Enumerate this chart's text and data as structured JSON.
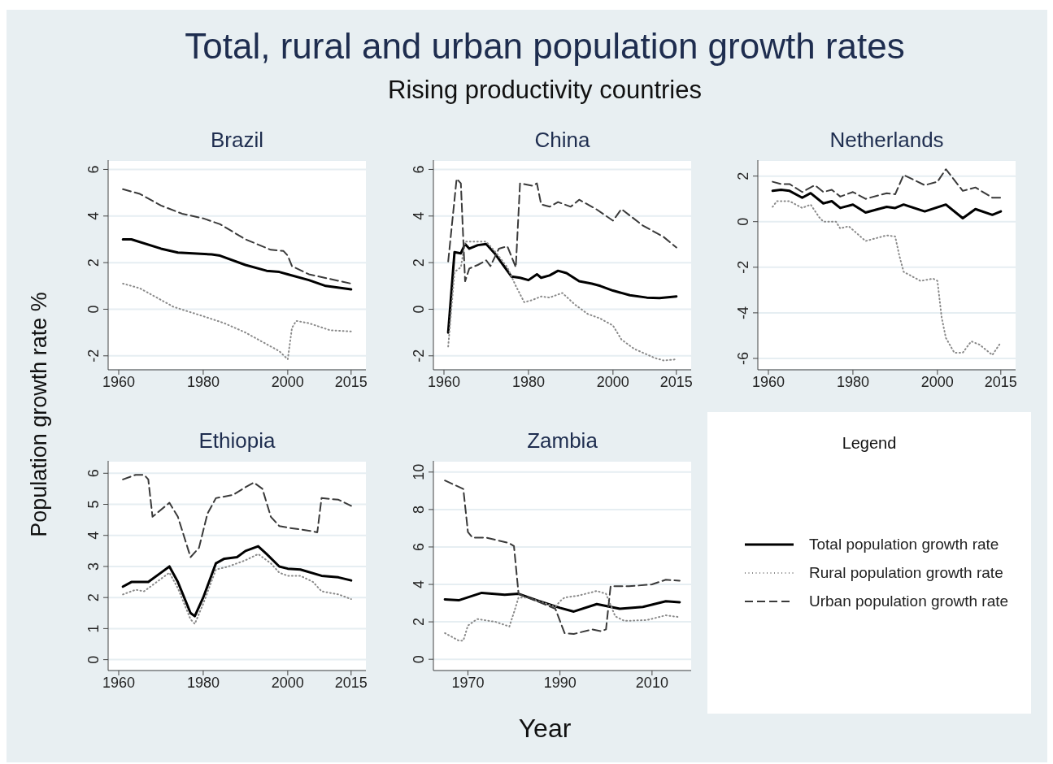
{
  "chart_data": [
    {
      "type": "other",
      "title": "Total, rural and urban population growth rates",
      "subtitle": "Rising productivity countries",
      "xlabel": "Year",
      "ylabel": "Population growth rate %"
    },
    {
      "type": "line",
      "title": "Brazil",
      "xlim": [
        1957.5,
        2018.5
      ],
      "xticks": [
        1960,
        1980,
        2000,
        2015
      ],
      "ylim": [
        -2.6,
        6.4
      ],
      "yticks": [
        -2,
        0,
        2,
        4,
        6
      ],
      "grid": "y",
      "series": [
        {
          "color": "#000000",
          "line_style": "solid",
          "x": [
            1961,
            1963,
            1970,
            1974,
            1982,
            1984,
            1990,
            1995,
            1998,
            2000,
            2005,
            2009,
            2015
          ],
          "values": [
            3.0,
            3.0,
            2.6,
            2.43,
            2.35,
            2.3,
            1.9,
            1.65,
            1.6,
            1.5,
            1.25,
            1.0,
            0.85
          ]
        },
        {
          "color": "#8a8a8a",
          "line_style": "dotted",
          "x": [
            1961,
            1965,
            1970,
            1973,
            1980,
            1985,
            1990,
            1995,
            1998,
            2000,
            2001,
            2002,
            2005,
            2010,
            2015
          ],
          "values": [
            1.1,
            0.9,
            0.4,
            0.1,
            -0.3,
            -0.6,
            -1.0,
            -1.5,
            -1.8,
            -2.15,
            -0.8,
            -0.5,
            -0.6,
            -0.9,
            -0.95
          ]
        },
        {
          "color": "#3a3a3a",
          "line_style": "dashed",
          "x": [
            1961,
            1965,
            1970,
            1975,
            1980,
            1984,
            1990,
            1996,
            1999,
            2000,
            2001,
            2005,
            2010,
            2015
          ],
          "values": [
            5.15,
            4.95,
            4.45,
            4.1,
            3.9,
            3.65,
            3.0,
            2.55,
            2.5,
            2.3,
            1.85,
            1.5,
            1.3,
            1.1
          ]
        }
      ]
    },
    {
      "type": "line",
      "title": "China",
      "xlim": [
        1957.5,
        2018.5
      ],
      "xticks": [
        1960,
        1980,
        2000,
        2015
      ],
      "ylim": [
        -2.6,
        6.4
      ],
      "yticks": [
        -2,
        0,
        2,
        4,
        6
      ],
      "grid": "y",
      "series": [
        {
          "color": "#000000",
          "line_style": "solid",
          "x": [
            1961,
            1962.5,
            1964,
            1965,
            1966,
            1968,
            1970,
            1972,
            1974,
            1976,
            1978,
            1980,
            1982,
            1983,
            1985,
            1987,
            1989,
            1992,
            1995,
            1997,
            2000,
            2004,
            2008,
            2011,
            2015
          ],
          "values": [
            -1.0,
            2.45,
            2.4,
            2.8,
            2.6,
            2.75,
            2.8,
            2.4,
            1.9,
            1.4,
            1.35,
            1.25,
            1.5,
            1.35,
            1.45,
            1.65,
            1.55,
            1.2,
            1.1,
            1.0,
            0.8,
            0.6,
            0.5,
            0.48,
            0.55
          ]
        },
        {
          "color": "#8a8a8a",
          "line_style": "dotted",
          "x": [
            1961,
            1962.5,
            1964,
            1965,
            1968,
            1970,
            1972,
            1975,
            1977,
            1979,
            1981,
            1983,
            1985,
            1988,
            1991,
            1994,
            1997,
            2000,
            2002,
            2005,
            2010,
            2012,
            2015
          ],
          "values": [
            -1.6,
            1.6,
            1.8,
            2.9,
            2.9,
            2.9,
            2.5,
            1.8,
            1.0,
            0.3,
            0.4,
            0.55,
            0.5,
            0.7,
            0.2,
            -0.2,
            -0.4,
            -0.7,
            -1.3,
            -1.7,
            -2.1,
            -2.2,
            -2.15
          ]
        },
        {
          "color": "#3a3a3a",
          "line_style": "dashed",
          "x": [
            1961,
            1963,
            1964,
            1965,
            1966,
            1968,
            1970,
            1971,
            1973,
            1975,
            1977,
            1978,
            1981,
            1982,
            1983,
            1985,
            1987,
            1990,
            1992,
            1996,
            2000,
            2002,
            2007,
            2012,
            2015
          ],
          "values": [
            2.05,
            5.6,
            5.4,
            1.2,
            1.75,
            1.9,
            2.1,
            1.85,
            2.6,
            2.7,
            1.8,
            5.4,
            5.3,
            5.4,
            4.5,
            4.4,
            4.6,
            4.4,
            4.7,
            4.3,
            3.8,
            4.3,
            3.6,
            3.1,
            2.65
          ]
        }
      ]
    },
    {
      "type": "line",
      "title": "Netherlands",
      "xlim": [
        1957.5,
        2018.5
      ],
      "xticks": [
        1960,
        1980,
        2000,
        2015
      ],
      "ylim": [
        -6.5,
        2.7
      ],
      "yticks": [
        -6,
        -4,
        -2,
        0,
        2
      ],
      "grid": "y",
      "series": [
        {
          "color": "#000000",
          "line_style": "solid",
          "x": [
            1961,
            1963,
            1965,
            1968,
            1970,
            1973,
            1975,
            1977,
            1980,
            1983,
            1986,
            1988,
            1990,
            1992,
            1997,
            2002,
            2006,
            2009,
            2013,
            2015
          ],
          "values": [
            1.35,
            1.4,
            1.35,
            1.05,
            1.25,
            0.8,
            0.9,
            0.6,
            0.75,
            0.4,
            0.55,
            0.65,
            0.6,
            0.75,
            0.45,
            0.75,
            0.15,
            0.55,
            0.3,
            0.45
          ]
        },
        {
          "color": "#8a8a8a",
          "line_style": "dotted",
          "x": [
            1961,
            1962,
            1965,
            1968,
            1970,
            1972,
            1973,
            1976,
            1977,
            1979,
            1983,
            1988,
            1990,
            1991,
            1992,
            1996,
            1999,
            2000,
            2001,
            2002,
            2004,
            2006,
            2008,
            2010,
            2013,
            2015
          ],
          "values": [
            0.65,
            0.9,
            0.9,
            0.6,
            0.75,
            0.2,
            0.0,
            0.0,
            -0.3,
            -0.2,
            -0.85,
            -0.6,
            -0.65,
            -1.5,
            -2.2,
            -2.6,
            -2.5,
            -2.6,
            -4.2,
            -5.1,
            -5.75,
            -5.75,
            -5.25,
            -5.4,
            -5.85,
            -5.3
          ]
        },
        {
          "color": "#3a3a3a",
          "line_style": "dashed",
          "x": [
            1961,
            1963,
            1965,
            1968,
            1971,
            1973,
            1975,
            1977,
            1980,
            1983,
            1988,
            1990,
            1992,
            1997,
            2000,
            2002,
            2006,
            2009,
            2013,
            2015
          ],
          "values": [
            1.75,
            1.65,
            1.65,
            1.3,
            1.6,
            1.3,
            1.4,
            1.1,
            1.3,
            1.0,
            1.25,
            1.2,
            2.05,
            1.6,
            1.75,
            2.3,
            1.35,
            1.5,
            1.05,
            1.05
          ]
        }
      ]
    },
    {
      "type": "line",
      "title": "Ethiopia",
      "xlim": [
        1957.5,
        2018.5
      ],
      "xticks": [
        1960,
        1980,
        2000,
        2015
      ],
      "ylim": [
        -0.35,
        6.4
      ],
      "yticks": [
        0,
        1,
        2,
        3,
        4,
        5,
        6
      ],
      "grid": "y",
      "series": [
        {
          "color": "#000000",
          "line_style": "solid",
          "x": [
            1961,
            1963,
            1967,
            1970,
            1972,
            1974,
            1977,
            1978,
            1980,
            1983,
            1985,
            1988,
            1990,
            1993,
            1995,
            1998,
            2000,
            2003,
            2008,
            2012,
            2015
          ],
          "values": [
            2.35,
            2.5,
            2.5,
            2.8,
            3.0,
            2.5,
            1.5,
            1.4,
            2.0,
            3.1,
            3.25,
            3.3,
            3.5,
            3.65,
            3.4,
            3.0,
            2.93,
            2.9,
            2.7,
            2.65,
            2.55
          ]
        },
        {
          "color": "#8a8a8a",
          "line_style": "dotted",
          "x": [
            1961,
            1964,
            1966,
            1970,
            1972,
            1974,
            1977,
            1978,
            1980,
            1983,
            1986,
            1990,
            1993,
            1996,
            1998,
            2000,
            2003,
            2006,
            2008,
            2012,
            2015
          ],
          "values": [
            2.1,
            2.25,
            2.2,
            2.6,
            2.8,
            2.3,
            1.3,
            1.15,
            1.8,
            2.9,
            3.0,
            3.2,
            3.4,
            3.1,
            2.8,
            2.7,
            2.7,
            2.5,
            2.2,
            2.1,
            1.95
          ]
        },
        {
          "color": "#3a3a3a",
          "line_style": "dashed",
          "x": [
            1961,
            1964,
            1966,
            1967,
            1968,
            1972,
            1974,
            1977,
            1979,
            1981,
            1983,
            1987,
            1990,
            1992,
            1994,
            1996,
            1998,
            2000,
            2005,
            2007,
            2008,
            2012,
            2015
          ],
          "values": [
            5.8,
            5.95,
            5.95,
            5.8,
            4.6,
            5.05,
            4.6,
            3.3,
            3.6,
            4.7,
            5.2,
            5.3,
            5.55,
            5.7,
            5.5,
            4.6,
            4.3,
            4.25,
            4.15,
            4.1,
            5.2,
            5.15,
            4.95
          ]
        }
      ]
    },
    {
      "type": "line",
      "title": "Zambia",
      "legend": "right",
      "legend_title": "Legend",
      "xlim": [
        1962.5,
        2018.5
      ],
      "xticks": [
        1970,
        1990,
        2010
      ],
      "ylim": [
        -0.6,
        10.6
      ],
      "yticks": [
        0,
        2,
        4,
        6,
        8,
        10
      ],
      "grid": "y",
      "series": [
        {
          "name": "Total population growth rate",
          "color": "#000000",
          "line_style": "solid",
          "x": [
            1965,
            1968,
            1973,
            1978,
            1981,
            1985,
            1990,
            1993,
            1998,
            2003,
            2008,
            2013,
            2016
          ],
          "values": [
            3.2,
            3.15,
            3.55,
            3.45,
            3.5,
            3.15,
            2.75,
            2.55,
            2.95,
            2.7,
            2.8,
            3.1,
            3.05
          ]
        },
        {
          "name": "Rural population growth rate",
          "color": "#8a8a8a",
          "line_style": "dotted",
          "x": [
            1965,
            1968,
            1969,
            1970,
            1972,
            1976,
            1979,
            1980,
            1981,
            1983,
            1989,
            1990,
            1991,
            1994,
            1998,
            2000,
            2002,
            2004,
            2009,
            2013,
            2016
          ],
          "values": [
            1.4,
            1.0,
            1.0,
            1.8,
            2.15,
            2.0,
            1.75,
            2.5,
            3.3,
            3.3,
            2.8,
            3.1,
            3.3,
            3.4,
            3.65,
            3.5,
            2.3,
            2.05,
            2.1,
            2.35,
            2.25
          ]
        },
        {
          "name": "Urban population growth rate",
          "color": "#3a3a3a",
          "line_style": "dashed",
          "x": [
            1965,
            1969,
            1970,
            1971,
            1974,
            1979,
            1980,
            1981,
            1984,
            1989,
            1991,
            1993,
            1997,
            1999,
            2000,
            2001,
            2005,
            2010,
            2013,
            2016
          ],
          "values": [
            9.55,
            9.1,
            6.8,
            6.5,
            6.5,
            6.2,
            6.05,
            3.5,
            3.2,
            2.7,
            1.4,
            1.35,
            1.6,
            1.5,
            1.6,
            3.9,
            3.9,
            4.0,
            4.25,
            4.2
          ]
        }
      ]
    }
  ]
}
